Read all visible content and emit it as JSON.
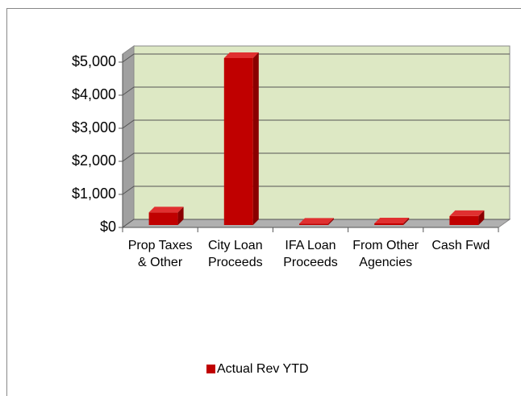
{
  "chart_data": {
    "type": "bar3d",
    "categories": [
      "Prop Taxes & Other",
      "City Loan Proceeds",
      "IFA Loan Proceeds",
      "From Other Agencies",
      "Cash Fwd"
    ],
    "series": [
      {
        "name": "Actual Rev YTD",
        "color": "#c00000",
        "values": [
          380,
          5050,
          40,
          50,
          270
        ]
      }
    ],
    "ylim": [
      0,
      5000
    ],
    "yticks": [
      {
        "value": 0,
        "label": "$0"
      },
      {
        "value": 1000,
        "label": "$1,000"
      },
      {
        "value": 2000,
        "label": "$2,000"
      },
      {
        "value": 3000,
        "label": "$3,000"
      },
      {
        "value": 4000,
        "label": "$4,000"
      },
      {
        "value": 5000,
        "label": "$5,000"
      }
    ],
    "grid": true,
    "legend": "bottom"
  }
}
